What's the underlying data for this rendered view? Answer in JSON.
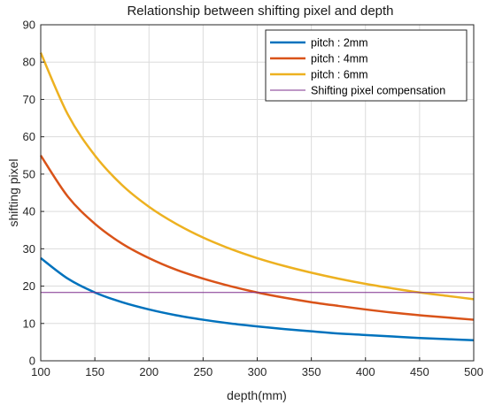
{
  "chart_data": {
    "type": "line",
    "title": "Relationship between shifting pixel and depth",
    "xlabel": "depth(mm)",
    "ylabel": "shifting pixel",
    "xlim": [
      100,
      500
    ],
    "ylim": [
      0,
      90
    ],
    "xticks": [
      100,
      150,
      200,
      250,
      300,
      350,
      400,
      450,
      500
    ],
    "yticks": [
      0,
      10,
      20,
      30,
      40,
      50,
      60,
      70,
      80,
      90
    ],
    "grid": true,
    "legend_position": "top-right",
    "x": [
      100,
      125,
      150,
      175,
      200,
      225,
      250,
      275,
      300,
      325,
      350,
      375,
      400,
      425,
      450,
      475,
      500
    ],
    "series": [
      {
        "name": "pitch : 2mm",
        "color": "#0072BD",
        "values": [
          27.5,
          22.0,
          18.3,
          15.7,
          13.75,
          12.2,
          11.0,
          10.0,
          9.2,
          8.5,
          7.9,
          7.3,
          6.9,
          6.5,
          6.1,
          5.8,
          5.5
        ]
      },
      {
        "name": "pitch : 4mm",
        "color": "#D95319",
        "values": [
          55.0,
          44.0,
          36.7,
          31.4,
          27.5,
          24.4,
          22.0,
          20.0,
          18.3,
          16.9,
          15.7,
          14.7,
          13.75,
          12.9,
          12.2,
          11.6,
          11.0
        ]
      },
      {
        "name": "pitch : 6mm",
        "color": "#EDB120",
        "values": [
          82.5,
          66.0,
          55.0,
          47.1,
          41.25,
          36.7,
          33.0,
          30.0,
          27.5,
          25.4,
          23.6,
          22.0,
          20.6,
          19.4,
          18.3,
          17.4,
          16.5
        ]
      },
      {
        "name": "Shifting pixel compensation",
        "color": "#7E2F8E",
        "values": [
          18.3,
          18.3,
          18.3,
          18.3,
          18.3,
          18.3,
          18.3,
          18.3,
          18.3,
          18.3,
          18.3,
          18.3,
          18.3,
          18.3,
          18.3,
          18.3,
          18.3
        ]
      }
    ]
  }
}
